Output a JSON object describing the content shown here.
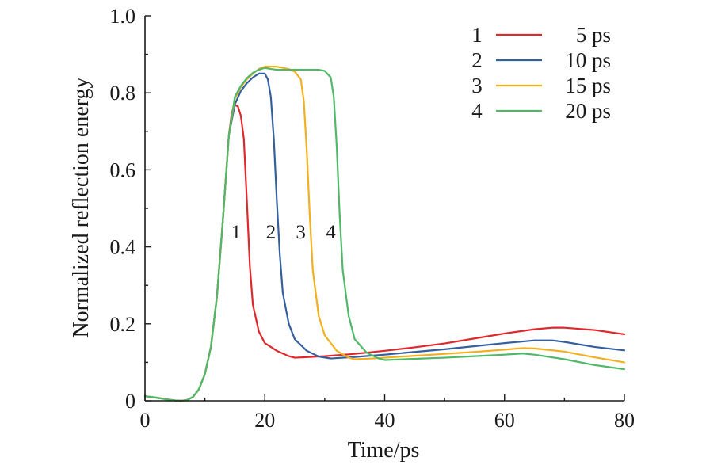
{
  "chart_data": {
    "type": "line",
    "title": "",
    "xlabel": "Time/ps",
    "ylabel": "Normalized reflection energy",
    "xlim": [
      0,
      80
    ],
    "ylim": [
      0,
      1.0
    ],
    "xticks": [
      0,
      20,
      40,
      60,
      80
    ],
    "xtick_labels": [
      "0",
      "20",
      "40",
      "60",
      "80"
    ],
    "yticks": [
      0,
      0.2,
      0.4,
      0.6,
      0.8,
      1.0
    ],
    "ytick_labels": [
      "0",
      "0.2",
      "0.4",
      "0.6",
      "0.8",
      "1.0"
    ],
    "legend_position": "top-right",
    "series": [
      {
        "id": "1",
        "name": "5 ps",
        "color": "#e0272b",
        "points": [
          [
            0,
            0.012
          ],
          [
            2,
            0.008
          ],
          [
            4,
            0.003
          ],
          [
            5,
            0.001
          ],
          [
            6,
            0.0
          ],
          [
            7,
            0.002
          ],
          [
            8,
            0.01
          ],
          [
            9,
            0.03
          ],
          [
            10,
            0.07
          ],
          [
            11,
            0.14
          ],
          [
            12,
            0.27
          ],
          [
            13,
            0.47
          ],
          [
            13.5,
            0.58
          ],
          [
            14,
            0.69
          ],
          [
            14.5,
            0.75
          ],
          [
            15,
            0.768
          ],
          [
            15.5,
            0.765
          ],
          [
            16,
            0.74
          ],
          [
            16.5,
            0.68
          ],
          [
            17,
            0.52
          ],
          [
            17.5,
            0.35
          ],
          [
            18,
            0.25
          ],
          [
            19,
            0.18
          ],
          [
            20,
            0.15
          ],
          [
            22,
            0.13
          ],
          [
            24,
            0.116
          ],
          [
            25,
            0.112
          ],
          [
            30,
            0.116
          ],
          [
            35,
            0.122
          ],
          [
            40,
            0.13
          ],
          [
            45,
            0.139
          ],
          [
            50,
            0.149
          ],
          [
            55,
            0.162
          ],
          [
            60,
            0.175
          ],
          [
            65,
            0.186
          ],
          [
            68,
            0.19
          ],
          [
            70,
            0.19
          ],
          [
            75,
            0.184
          ],
          [
            80,
            0.173
          ]
        ]
      },
      {
        "id": "2",
        "name": "10 ps",
        "color": "#34609e",
        "points": [
          [
            0,
            0.012
          ],
          [
            2,
            0.008
          ],
          [
            4,
            0.003
          ],
          [
            5,
            0.001
          ],
          [
            6,
            0.0
          ],
          [
            7,
            0.002
          ],
          [
            8,
            0.01
          ],
          [
            9,
            0.03
          ],
          [
            10,
            0.07
          ],
          [
            11,
            0.14
          ],
          [
            12,
            0.27
          ],
          [
            13,
            0.47
          ],
          [
            13.5,
            0.58
          ],
          [
            14,
            0.69
          ],
          [
            15,
            0.77
          ],
          [
            16,
            0.805
          ],
          [
            17,
            0.825
          ],
          [
            18,
            0.84
          ],
          [
            19,
            0.85
          ],
          [
            20,
            0.85
          ],
          [
            20.5,
            0.835
          ],
          [
            21,
            0.79
          ],
          [
            21.5,
            0.68
          ],
          [
            22,
            0.52
          ],
          [
            22.5,
            0.38
          ],
          [
            23,
            0.28
          ],
          [
            24,
            0.2
          ],
          [
            25,
            0.16
          ],
          [
            27,
            0.13
          ],
          [
            29,
            0.115
          ],
          [
            31,
            0.11
          ],
          [
            35,
            0.114
          ],
          [
            40,
            0.12
          ],
          [
            45,
            0.127
          ],
          [
            50,
            0.134
          ],
          [
            55,
            0.142
          ],
          [
            60,
            0.15
          ],
          [
            65,
            0.157
          ],
          [
            68,
            0.157
          ],
          [
            70,
            0.153
          ],
          [
            75,
            0.14
          ],
          [
            80,
            0.131
          ]
        ]
      },
      {
        "id": "3",
        "name": "15 ps",
        "color": "#f2b01f",
        "points": [
          [
            0,
            0.012
          ],
          [
            2,
            0.008
          ],
          [
            4,
            0.003
          ],
          [
            5,
            0.001
          ],
          [
            6,
            0.0
          ],
          [
            7,
            0.002
          ],
          [
            8,
            0.01
          ],
          [
            9,
            0.03
          ],
          [
            10,
            0.07
          ],
          [
            11,
            0.14
          ],
          [
            12,
            0.27
          ],
          [
            13,
            0.47
          ],
          [
            13.5,
            0.58
          ],
          [
            14,
            0.69
          ],
          [
            15,
            0.785
          ],
          [
            16,
            0.815
          ],
          [
            17,
            0.835
          ],
          [
            18,
            0.85
          ],
          [
            19,
            0.862
          ],
          [
            20,
            0.868
          ],
          [
            22,
            0.868
          ],
          [
            24,
            0.862
          ],
          [
            25,
            0.855
          ],
          [
            26,
            0.835
          ],
          [
            26.5,
            0.78
          ],
          [
            27,
            0.65
          ],
          [
            27.5,
            0.48
          ],
          [
            28,
            0.34
          ],
          [
            29,
            0.22
          ],
          [
            30,
            0.17
          ],
          [
            32,
            0.13
          ],
          [
            34,
            0.112
          ],
          [
            35,
            0.108
          ],
          [
            38,
            0.11
          ],
          [
            40,
            0.112
          ],
          [
            45,
            0.117
          ],
          [
            50,
            0.122
          ],
          [
            55,
            0.127
          ],
          [
            60,
            0.133
          ],
          [
            63,
            0.137
          ],
          [
            65,
            0.136
          ],
          [
            70,
            0.128
          ],
          [
            75,
            0.113
          ],
          [
            80,
            0.1
          ]
        ]
      },
      {
        "id": "4",
        "name": "20 ps",
        "color": "#4fb869",
        "points": [
          [
            0,
            0.012
          ],
          [
            2,
            0.008
          ],
          [
            4,
            0.003
          ],
          [
            5,
            0.001
          ],
          [
            6,
            0.0
          ],
          [
            7,
            0.002
          ],
          [
            8,
            0.01
          ],
          [
            9,
            0.03
          ],
          [
            10,
            0.07
          ],
          [
            11,
            0.14
          ],
          [
            12,
            0.27
          ],
          [
            13,
            0.47
          ],
          [
            13.5,
            0.58
          ],
          [
            14,
            0.69
          ],
          [
            15,
            0.79
          ],
          [
            16,
            0.818
          ],
          [
            17,
            0.838
          ],
          [
            18,
            0.852
          ],
          [
            19,
            0.86
          ],
          [
            20,
            0.865
          ],
          [
            21,
            0.862
          ],
          [
            22,
            0.86
          ],
          [
            26,
            0.86
          ],
          [
            29,
            0.86
          ],
          [
            30,
            0.857
          ],
          [
            31,
            0.84
          ],
          [
            31.5,
            0.79
          ],
          [
            32,
            0.66
          ],
          [
            32.5,
            0.48
          ],
          [
            33,
            0.34
          ],
          [
            34,
            0.22
          ],
          [
            35,
            0.16
          ],
          [
            37,
            0.125
          ],
          [
            39,
            0.11
          ],
          [
            40,
            0.106
          ],
          [
            45,
            0.109
          ],
          [
            50,
            0.112
          ],
          [
            55,
            0.116
          ],
          [
            60,
            0.12
          ],
          [
            63,
            0.123
          ],
          [
            65,
            0.12
          ],
          [
            70,
            0.108
          ],
          [
            75,
            0.093
          ],
          [
            80,
            0.082
          ]
        ]
      }
    ],
    "annotations": [
      {
        "text": "1",
        "x": 15.2,
        "y": 0.44
      },
      {
        "text": "2",
        "x": 21.0,
        "y": 0.44
      },
      {
        "text": "3",
        "x": 26.0,
        "y": 0.44
      },
      {
        "text": "4",
        "x": 31.0,
        "y": 0.44
      }
    ]
  }
}
